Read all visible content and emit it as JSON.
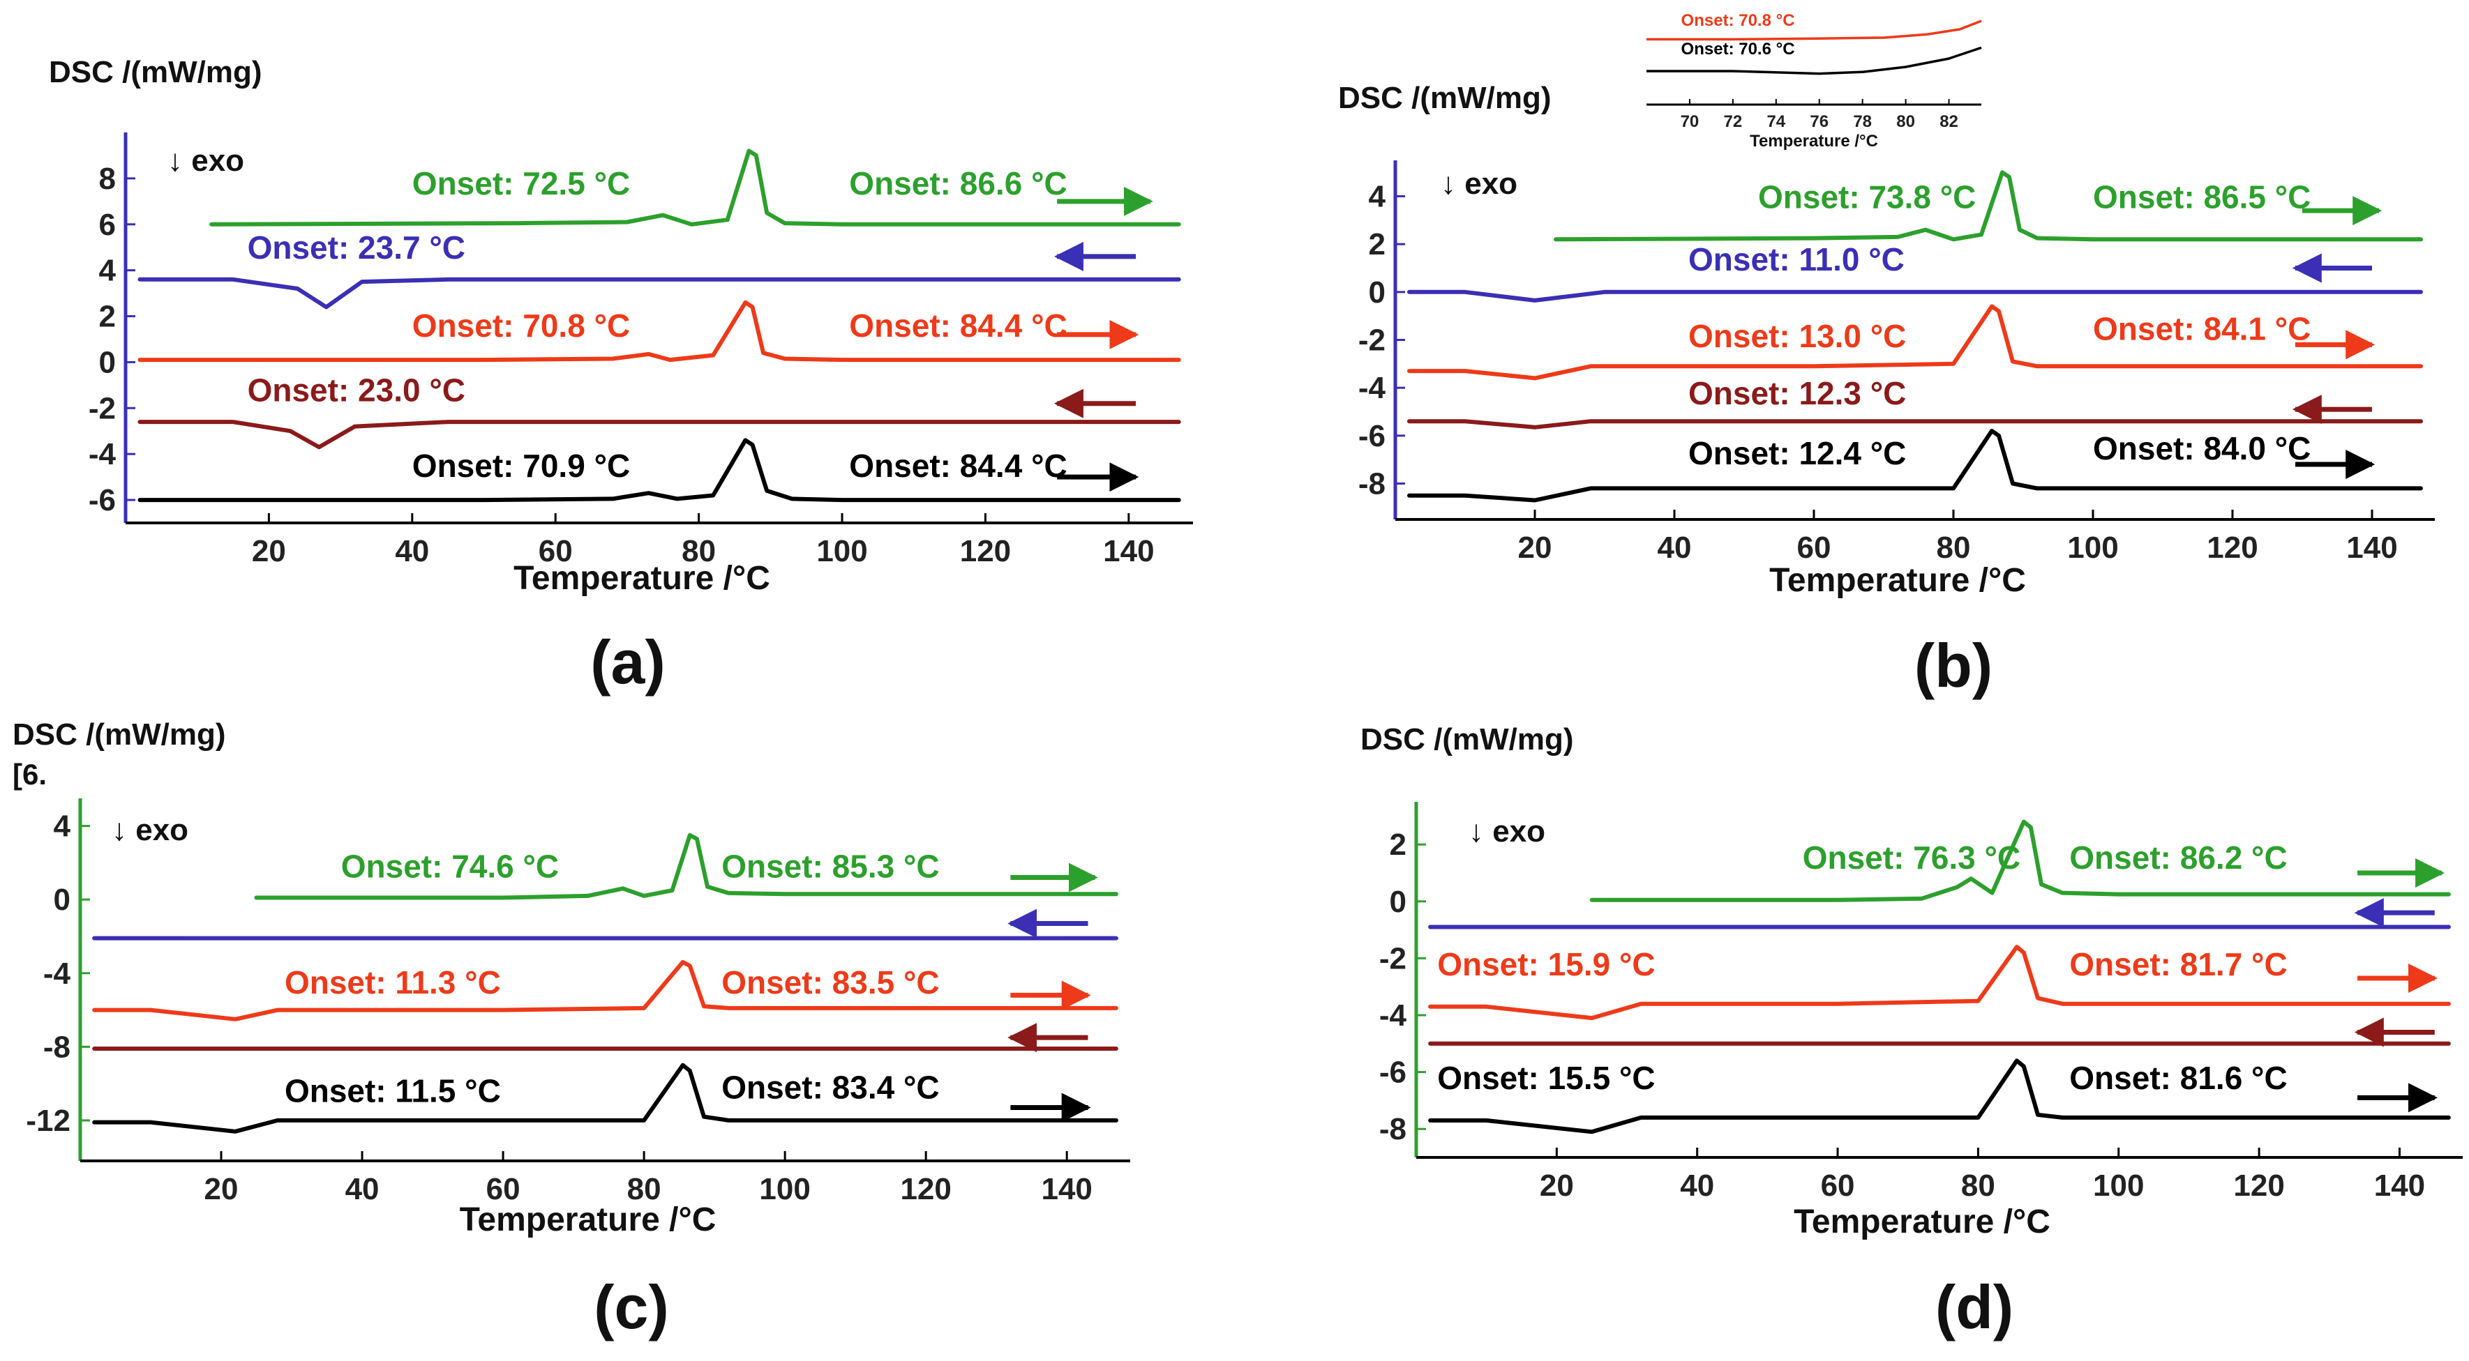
{
  "chart_data": [
    {
      "panel": "(a)",
      "type": "line",
      "ylabel": "DSC /(mW/mg)",
      "xlabel": "Temperature /°C",
      "xlim": [
        0,
        148
      ],
      "ylim": [
        -7,
        10
      ],
      "xticks": [
        "20",
        "40",
        "60",
        "80",
        "100",
        "120",
        "140"
      ],
      "yticks": [
        "8",
        "6",
        "4",
        "2",
        "0",
        "-2",
        "-4",
        "-6"
      ],
      "exo": "↓ exo",
      "curves": [
        {
          "color": "#2ca02c",
          "x": [
            12,
            55,
            70,
            75,
            79,
            84,
            87,
            88,
            89.5,
            92,
            100,
            147
          ],
          "y": [
            6,
            6.05,
            6.1,
            6.4,
            6.0,
            6.2,
            9.2,
            9.0,
            6.5,
            6.05,
            6,
            6
          ]
        },
        {
          "color": "#3a2fb5",
          "x": [
            2,
            15,
            24,
            28,
            33,
            45,
            147
          ],
          "y": [
            3.6,
            3.6,
            3.2,
            2.4,
            3.5,
            3.6,
            3.6
          ]
        },
        {
          "color": "#ee3a19",
          "x": [
            2,
            50,
            68,
            73,
            76,
            82,
            86.5,
            87.5,
            89,
            92,
            100,
            147
          ],
          "y": [
            0.1,
            0.1,
            0.15,
            0.35,
            0.1,
            0.3,
            2.6,
            2.4,
            0.4,
            0.15,
            0.1,
            0.1
          ]
        },
        {
          "color": "#8b1a1a",
          "x": [
            2,
            15,
            23,
            27,
            32,
            45,
            147
          ],
          "y": [
            -2.6,
            -2.6,
            -3.0,
            -3.7,
            -2.8,
            -2.6,
            -2.6
          ]
        },
        {
          "color": "#000000",
          "x": [
            2,
            50,
            68,
            73,
            77,
            82,
            86.5,
            87.5,
            89.5,
            93,
            100,
            147
          ],
          "y": [
            -6,
            -6,
            -5.95,
            -5.7,
            -5.95,
            -5.8,
            -3.4,
            -3.6,
            -5.6,
            -5.95,
            -6,
            -6
          ]
        }
      ],
      "annotations": [
        {
          "text": "Onset: 72.5 °C",
          "color": "#2ca02c",
          "x": 40,
          "y": 7.3
        },
        {
          "text": "Onset: 86.6 °C",
          "color": "#2ca02c",
          "x": 101,
          "y": 7.3
        },
        {
          "text": "Onset: 23.7 °C",
          "color": "#3a2fb5",
          "x": 17,
          "y": 4.5
        },
        {
          "text": "Onset: 70.8 °C",
          "color": "#ee3a19",
          "x": 40,
          "y": 1.1
        },
        {
          "text": "Onset: 84.4 °C",
          "color": "#ee3a19",
          "x": 101,
          "y": 1.1
        },
        {
          "text": "Onset: 23.0 °C",
          "color": "#8b1a1a",
          "x": 17,
          "y": -1.7
        },
        {
          "text": "Onset: 70.9 °C",
          "color": "#000000",
          "x": 40,
          "y": -5.0
        },
        {
          "text": "Onset: 84.4 °C",
          "color": "#000000",
          "x": 101,
          "y": -5.0
        }
      ],
      "arrows": [
        {
          "color": "#2ca02c",
          "dir": "right",
          "x1": 130,
          "x2": 143,
          "y": 7.0
        },
        {
          "color": "#3a2fb5",
          "dir": "left",
          "x1": 130,
          "x2": 141,
          "y": 4.6
        },
        {
          "color": "#ee3a19",
          "dir": "right",
          "x1": 130,
          "x2": 141,
          "y": 1.2
        },
        {
          "color": "#8b1a1a",
          "dir": "left",
          "x1": 130,
          "x2": 141,
          "y": -1.8
        },
        {
          "color": "#000000",
          "dir": "right",
          "x1": 130,
          "x2": 141,
          "y": -5.0
        }
      ]
    },
    {
      "panel": "(b)",
      "type": "line",
      "ylabel": "DSC /(mW/mg)",
      "xlabel": "Temperature /°C",
      "xlim": [
        0,
        148
      ],
      "ylim": [
        -9.5,
        5.5
      ],
      "xticks": [
        "20",
        "40",
        "60",
        "80",
        "100",
        "120",
        "140"
      ],
      "yticks": [
        "4",
        "2",
        "0",
        "-2",
        "-4",
        "-6",
        "-8"
      ],
      "exo": "↓ exo",
      "curves": [
        {
          "color": "#2ca02c",
          "x": [
            23,
            60,
            72,
            76,
            80,
            84,
            87,
            88,
            89.5,
            92,
            100,
            147
          ],
          "y": [
            2.2,
            2.25,
            2.3,
            2.6,
            2.2,
            2.4,
            5.0,
            4.8,
            2.6,
            2.25,
            2.2,
            2.2
          ]
        },
        {
          "color": "#3a2fb5",
          "x": [
            2,
            10,
            20,
            30,
            147
          ],
          "y": [
            0,
            0,
            -0.35,
            0,
            0
          ]
        },
        {
          "color": "#ee3a19",
          "x": [
            2,
            10,
            20,
            28,
            60,
            80,
            85.5,
            86.5,
            88.5,
            92,
            100,
            147
          ],
          "y": [
            -3.3,
            -3.3,
            -3.6,
            -3.1,
            -3.1,
            -3.0,
            -0.6,
            -0.8,
            -2.9,
            -3.1,
            -3.1,
            -3.1
          ]
        },
        {
          "color": "#8b1a1a",
          "x": [
            2,
            10,
            20,
            28,
            147
          ],
          "y": [
            -5.4,
            -5.4,
            -5.65,
            -5.4,
            -5.4
          ]
        },
        {
          "color": "#000000",
          "x": [
            2,
            10,
            20,
            28,
            60,
            80,
            85.5,
            86.5,
            88.5,
            92,
            100,
            147
          ],
          "y": [
            -8.5,
            -8.5,
            -8.7,
            -8.2,
            -8.2,
            -8.2,
            -5.8,
            -6.0,
            -8.0,
            -8.2,
            -8.2,
            -8.2
          ]
        }
      ],
      "annotations": [
        {
          "text": "Onset: 73.8 °C",
          "color": "#2ca02c",
          "x": 52,
          "y": 3.5
        },
        {
          "text": "Onset: 86.5 °C",
          "color": "#2ca02c",
          "x": 100,
          "y": 3.5
        },
        {
          "text": "Onset: 11.0 °C",
          "color": "#3a2fb5",
          "x": 42,
          "y": 0.9
        },
        {
          "text": "Onset: 13.0 °C",
          "color": "#ee3a19",
          "x": 42,
          "y": -2.3
        },
        {
          "text": "Onset: 84.1 °C",
          "color": "#ee3a19",
          "x": 100,
          "y": -2.0
        },
        {
          "text": "Onset: 12.3 °C",
          "color": "#8b1a1a",
          "x": 42,
          "y": -4.7
        },
        {
          "text": "Onset: 12.4 °C",
          "color": "#000000",
          "x": 42,
          "y": -7.2
        },
        {
          "text": "Onset: 84.0 °C",
          "color": "#000000",
          "x": 100,
          "y": -7.0
        }
      ],
      "arrows": [
        {
          "color": "#2ca02c",
          "dir": "right",
          "x1": 130,
          "x2": 141,
          "y": 3.4
        },
        {
          "color": "#3a2fb5",
          "dir": "left",
          "x1": 129,
          "x2": 140,
          "y": 1.0
        },
        {
          "color": "#ee3a19",
          "dir": "right",
          "x1": 129,
          "x2": 140,
          "y": -2.2
        },
        {
          "color": "#8b1a1a",
          "dir": "left",
          "x1": 129,
          "x2": 140,
          "y": -4.9
        },
        {
          "color": "#000000",
          "dir": "right",
          "x1": 129,
          "x2": 140,
          "y": -7.2
        }
      ],
      "inset": {
        "xlabel": "Temperature /°C",
        "xlim": [
          68,
          83.5
        ],
        "ylim": [
          0,
          1
        ],
        "xticks": [
          "70",
          "72",
          "74",
          "76",
          "78",
          "80",
          "82"
        ],
        "curves": [
          {
            "color": "#ee3a19",
            "x": [
              68,
              72,
              76,
              79,
              81,
              82.5,
              83.5
            ],
            "y": [
              0.78,
              0.78,
              0.79,
              0.8,
              0.84,
              0.9,
              1.0
            ]
          },
          {
            "color": "#000000",
            "x": [
              68,
              72,
              76,
              78,
              80,
              82,
              83.5
            ],
            "y": [
              0.4,
              0.4,
              0.37,
              0.39,
              0.45,
              0.55,
              0.68
            ]
          }
        ],
        "annotations": [
          {
            "text": "Onset: 70.8 °C",
            "color": "#ee3a19",
            "x": 69.6,
            "y": 0.94
          },
          {
            "text": "Onset: 70.6 °C",
            "color": "#000000",
            "x": 69.6,
            "y": 0.6
          }
        ]
      }
    },
    {
      "panel": "(c)",
      "type": "line",
      "ylabel": "DSC /(mW/mg)",
      "ylabel_extra": "[6.",
      "xlabel": "Temperature /°C",
      "xlim": [
        0,
        148
      ],
      "ylim": [
        -14.2,
        5.5
      ],
      "xticks": [
        "20",
        "40",
        "60",
        "80",
        "100",
        "120",
        "140"
      ],
      "yticks": [
        "4",
        "0",
        "-4",
        "-8",
        "-12"
      ],
      "exo": "↓ exo",
      "curves": [
        {
          "color": "#2ca02c",
          "x": [
            25,
            60,
            72,
            77,
            80,
            84,
            86.5,
            87.5,
            89,
            92,
            100,
            147
          ],
          "y": [
            0.1,
            0.1,
            0.2,
            0.6,
            0.2,
            0.5,
            3.5,
            3.3,
            0.7,
            0.35,
            0.3,
            0.3
          ]
        },
        {
          "color": "#3a2fb5",
          "x": [
            2,
            147
          ],
          "y": [
            -2.1,
            -2.1
          ]
        },
        {
          "color": "#ee3a19",
          "x": [
            2,
            10,
            22,
            28,
            60,
            80,
            85.5,
            86.5,
            88.5,
            92,
            100,
            147
          ],
          "y": [
            -6.0,
            -6.0,
            -6.5,
            -6.0,
            -6.0,
            -5.9,
            -3.4,
            -3.6,
            -5.8,
            -5.9,
            -5.9,
            -5.9
          ]
        },
        {
          "color": "#8b1a1a",
          "x": [
            2,
            147
          ],
          "y": [
            -8.1,
            -8.1
          ]
        },
        {
          "color": "#000000",
          "x": [
            2,
            10,
            22,
            28,
            60,
            80,
            85.5,
            86.5,
            88.5,
            92,
            100,
            147
          ],
          "y": [
            -12.1,
            -12.1,
            -12.6,
            -12.0,
            -12.0,
            -12.0,
            -9.0,
            -9.3,
            -11.8,
            -12.0,
            -12.0,
            -12.0
          ]
        }
      ],
      "annotations": [
        {
          "text": "Onset: 74.6 °C",
          "color": "#2ca02c",
          "x": 37,
          "y": 1.2
        },
        {
          "text": "Onset: 85.3 °C",
          "color": "#2ca02c",
          "x": 91,
          "y": 1.2
        },
        {
          "text": "Onset: 11.3 °C",
          "color": "#ee3a19",
          "x": 29,
          "y": -5.1
        },
        {
          "text": "Onset: 83.5 °C",
          "color": "#ee3a19",
          "x": 91,
          "y": -5.1
        },
        {
          "text": "Onset: 11.5 °C",
          "color": "#000000",
          "x": 29,
          "y": -11.0
        },
        {
          "text": "Onset: 83.4 °C",
          "color": "#000000",
          "x": 91,
          "y": -10.8
        }
      ],
      "arrows": [
        {
          "color": "#2ca02c",
          "dir": "right",
          "x1": 132,
          "x2": 144,
          "y": 1.2
        },
        {
          "color": "#3a2fb5",
          "dir": "left",
          "x1": 132,
          "x2": 143,
          "y": -1.3
        },
        {
          "color": "#ee3a19",
          "dir": "right",
          "x1": 132,
          "x2": 143,
          "y": -5.2
        },
        {
          "color": "#8b1a1a",
          "dir": "left",
          "x1": 132,
          "x2": 143,
          "y": -7.5
        },
        {
          "color": "#000000",
          "dir": "right",
          "x1": 132,
          "x2": 143,
          "y": -11.3
        }
      ]
    },
    {
      "panel": "(d)",
      "type": "line",
      "ylabel": "DSC /(mW/mg)",
      "xlabel": "Temperature /°C",
      "xlim": [
        0,
        148
      ],
      "ylim": [
        -9.0,
        3.5
      ],
      "xticks": [
        "20",
        "40",
        "60",
        "80",
        "100",
        "120",
        "140"
      ],
      "yticks": [
        "2",
        "0",
        "-2",
        "-4",
        "-6",
        "-8"
      ],
      "exo": "↓ exo",
      "curves": [
        {
          "color": "#2ca02c",
          "x": [
            25,
            60,
            72,
            77,
            79,
            82,
            86.5,
            87.5,
            89,
            92,
            100,
            147
          ],
          "y": [
            0.05,
            0.05,
            0.1,
            0.5,
            0.8,
            0.3,
            2.8,
            2.6,
            0.6,
            0.3,
            0.25,
            0.25
          ]
        },
        {
          "color": "#3a2fb5",
          "x": [
            2,
            147
          ],
          "y": [
            -0.9,
            -0.9
          ]
        },
        {
          "color": "#ee3a19",
          "x": [
            2,
            10,
            25,
            32,
            60,
            80,
            85.5,
            86.5,
            88.5,
            92,
            100,
            147
          ],
          "y": [
            -3.7,
            -3.7,
            -4.1,
            -3.6,
            -3.6,
            -3.5,
            -1.6,
            -1.8,
            -3.4,
            -3.6,
            -3.6,
            -3.6
          ]
        },
        {
          "color": "#8b1a1a",
          "x": [
            2,
            147
          ],
          "y": [
            -5.0,
            -5.0
          ]
        },
        {
          "color": "#000000",
          "x": [
            2,
            10,
            25,
            32,
            60,
            80,
            85.5,
            86.5,
            88.5,
            92,
            100,
            147
          ],
          "y": [
            -7.7,
            -7.7,
            -8.1,
            -7.6,
            -7.6,
            -7.6,
            -5.6,
            -5.8,
            -7.5,
            -7.6,
            -7.6,
            -7.6
          ]
        }
      ],
      "annotations": [
        {
          "text": "Onset: 76.3 °C",
          "color": "#2ca02c",
          "x": 55,
          "y": 1.15
        },
        {
          "text": "Onset: 86.2 °C",
          "color": "#2ca02c",
          "x": 93,
          "y": 1.15
        },
        {
          "text": "Onset: 15.9 °C",
          "color": "#ee3a19",
          "x": 3,
          "y": -2.6
        },
        {
          "text": "Onset: 81.7 °C",
          "color": "#ee3a19",
          "x": 93,
          "y": -2.6
        },
        {
          "text": "Onset: 15.5 °C",
          "color": "#000000",
          "x": 3,
          "y": -6.6
        },
        {
          "text": "Onset: 81.6 °C",
          "color": "#000000",
          "x": 93,
          "y": -6.6
        }
      ],
      "arrows": [
        {
          "color": "#2ca02c",
          "dir": "right",
          "x1": 134,
          "x2": 146,
          "y": 1.0
        },
        {
          "color": "#3a2fb5",
          "dir": "left",
          "x1": 134,
          "x2": 145,
          "y": -0.4
        },
        {
          "color": "#ee3a19",
          "dir": "right",
          "x1": 134,
          "x2": 145,
          "y": -2.7
        },
        {
          "color": "#8b1a1a",
          "dir": "left",
          "x1": 134,
          "x2": 145,
          "y": -4.6
        },
        {
          "color": "#000000",
          "dir": "right",
          "x1": 134,
          "x2": 145,
          "y": -6.9
        }
      ]
    }
  ]
}
